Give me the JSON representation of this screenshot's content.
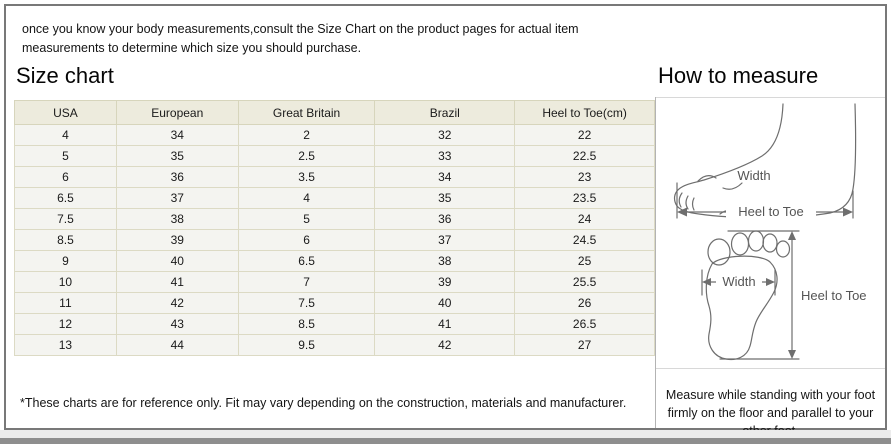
{
  "intro_text": "once you know your body measurements,consult the Size Chart on the product pages for actual item measurements to determine which size you should purchase.",
  "size_chart": {
    "title": "Size chart",
    "columns": [
      "USA",
      "European",
      "Great Britain",
      "Brazil",
      "Heel to Toe(cm)"
    ],
    "rows": [
      [
        "4",
        "34",
        "2",
        "32",
        "22"
      ],
      [
        "5",
        "35",
        "2.5",
        "33",
        "22.5"
      ],
      [
        "6",
        "36",
        "3.5",
        "34",
        "23"
      ],
      [
        "6.5",
        "37",
        "4",
        "35",
        "23.5"
      ],
      [
        "7.5",
        "38",
        "5",
        "36",
        "24"
      ],
      [
        "8.5",
        "39",
        "6",
        "37",
        "24.5"
      ],
      [
        "9",
        "40",
        "6.5",
        "38",
        "25"
      ],
      [
        "10",
        "41",
        "7",
        "39",
        "25.5"
      ],
      [
        "11",
        "42",
        "7.5",
        "40",
        "26"
      ],
      [
        "12",
        "43",
        "8.5",
        "41",
        "26.5"
      ],
      [
        "13",
        "44",
        "9.5",
        "42",
        "27"
      ]
    ],
    "footnote": "*These charts are for reference only. Fit may vary depending on the construction, materials and manufacturer."
  },
  "how_to_measure": {
    "title": "How to measure",
    "side_view": {
      "width_label": "Width",
      "length_label": "Heel to Toe"
    },
    "top_view": {
      "width_label": "Width",
      "length_label": "Heel to Toe"
    },
    "note": "Measure while standing with your foot firmly on the floor and parallel to your other foot."
  },
  "colors": {
    "table_header_bg": "#edebdd",
    "table_row_bg": "#f4f4f0",
    "table_border": "#d7d5bc",
    "frame_border": "#787878",
    "diagram_stroke": "#6e6e6e"
  }
}
